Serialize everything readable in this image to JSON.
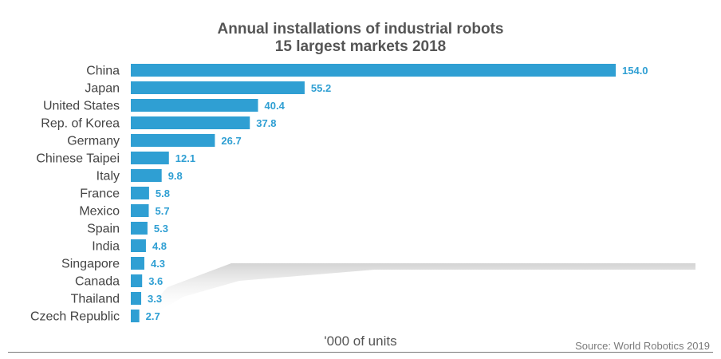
{
  "chart_data": {
    "type": "bar",
    "orientation": "horizontal",
    "title": "Annual installations of industrial robots",
    "subtitle": "15 largest markets 2018",
    "categories": [
      "China",
      "Japan",
      "United States",
      "Rep. of Korea",
      "Germany",
      "Chinese Taipei",
      "Italy",
      "France",
      "Mexico",
      "Spain",
      "India",
      "Singapore",
      "Canada",
      "Thailand",
      "Czech Republic"
    ],
    "values": [
      154.0,
      55.2,
      40.4,
      37.8,
      26.7,
      12.1,
      9.8,
      5.8,
      5.7,
      5.3,
      4.8,
      4.3,
      3.6,
      3.3,
      2.7
    ],
    "value_labels": [
      "154.0",
      "55.2",
      "40.4",
      "37.8",
      "26.7",
      "12.1",
      "9.8",
      "5.8",
      "5.7",
      "5.3",
      "4.8",
      "4.3",
      "3.6",
      "3.3",
      "2.7"
    ],
    "xlabel": "'000 of units",
    "xlim": [
      0,
      154
    ],
    "grid": false,
    "bar_color": "#2f9fd3",
    "label_color": "#2f9fd3"
  },
  "source": "Source: World Robotics 2019"
}
